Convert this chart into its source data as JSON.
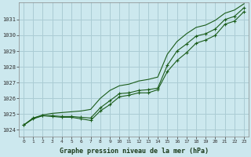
{
  "title": "Graphe pression niveau de la mer (hPa)",
  "background_color": "#cce8ee",
  "grid_color": "#aaccd4",
  "line_color": "#1a5c1a",
  "x_ticks": [
    0,
    1,
    2,
    3,
    4,
    5,
    6,
    7,
    8,
    9,
    10,
    11,
    12,
    13,
    14,
    15,
    16,
    17,
    18,
    19,
    20,
    21,
    22,
    23
  ],
  "ylim": [
    1023.6,
    1032.1
  ],
  "yticks": [
    1024,
    1025,
    1026,
    1027,
    1028,
    1029,
    1030,
    1031
  ],
  "series_top": [
    1024.3,
    1024.75,
    1024.95,
    1025.05,
    1025.1,
    1025.15,
    1025.2,
    1025.3,
    1026.0,
    1026.5,
    1026.8,
    1026.9,
    1027.1,
    1027.2,
    1027.35,
    1028.8,
    1029.6,
    1030.1,
    1030.5,
    1030.65,
    1030.95,
    1031.4,
    1031.6,
    1032.0
  ],
  "series_mid": [
    1024.3,
    1024.75,
    1024.9,
    1024.9,
    1024.85,
    1024.85,
    1024.8,
    1024.75,
    1025.4,
    1025.85,
    1026.3,
    1026.35,
    1026.5,
    1026.55,
    1026.65,
    1028.1,
    1029.0,
    1029.45,
    1029.95,
    1030.1,
    1030.4,
    1031.0,
    1031.2,
    1031.75
  ],
  "series_bot": [
    1024.3,
    1024.7,
    1024.9,
    1024.85,
    1024.8,
    1024.8,
    1024.7,
    1024.6,
    1025.2,
    1025.6,
    1026.1,
    1026.2,
    1026.35,
    1026.35,
    1026.55,
    1027.7,
    1028.4,
    1028.9,
    1029.5,
    1029.7,
    1030.0,
    1030.7,
    1030.9,
    1031.5
  ]
}
